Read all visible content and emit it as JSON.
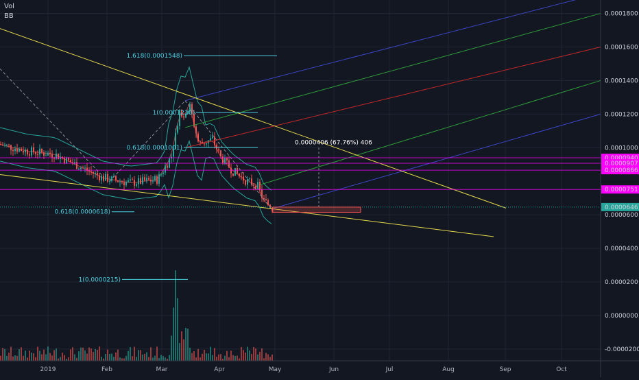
{
  "indicators": {
    "vol_label": "Vol",
    "bb_label": "BB"
  },
  "colors": {
    "background": "#131722",
    "grid": "#222634",
    "up": "#26a69a",
    "down": "#ef5350",
    "bb": "#26a69a",
    "fib": "#4dd0e1",
    "trend": "#e6d94c",
    "magenta": "#ff00ff",
    "fan_blue": "#3b46c8",
    "fan_green": "#2e9e39",
    "fan_red": "#c62828"
  },
  "chart_data": {
    "type": "candlestick",
    "title": "",
    "x_ticks": [
      "2019",
      "Feb",
      "Mar",
      "Apr",
      "May",
      "Jun",
      "Jul",
      "Aug",
      "Sep",
      "Oct"
    ],
    "y_ticks": [
      "0.0001800",
      "0.0001600",
      "0.0001400",
      "0.0001200",
      "0.0001000",
      "0.0000600",
      "0.0000400",
      "0.0000200",
      "0.0000000",
      "-0.0000200"
    ],
    "price_range": [
      -2.7e-05,
      0.000188
    ],
    "current_price": "0.0000646",
    "horizontal_levels": [
      {
        "label": "0.0000940",
        "value": 9.4e-05
      },
      {
        "label": "0.0000907",
        "value": 9.07e-05
      },
      {
        "label": "0.0000866",
        "value": 8.66e-05
      },
      {
        "label": "0.0000751",
        "value": 7.51e-05
      }
    ],
    "fib_levels": [
      {
        "label": "1.618(0.0001548)",
        "value": 0.0001548
      },
      {
        "label": "1(0.0001210)",
        "value": 0.000121
      },
      {
        "label": "0.618(0.0001001)",
        "value": 0.0001001
      },
      {
        "label": "0.618(0.0000618)",
        "value": 6.18e-05
      },
      {
        "label": "1(0.0000215)",
        "value": 2.15e-05
      }
    ],
    "measure_label": "0.0000406 (67.76%) 406",
    "grid": true,
    "legend": "none"
  }
}
